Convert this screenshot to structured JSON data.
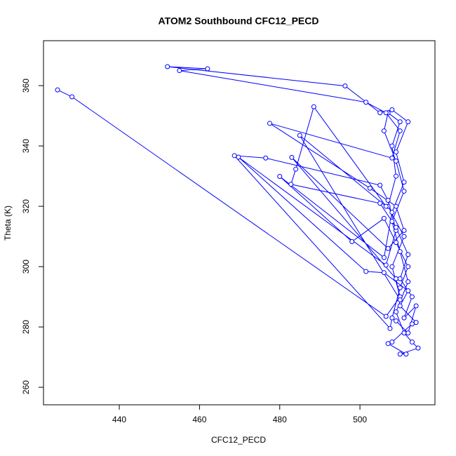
{
  "chart_data": {
    "type": "line",
    "title": "ATOM2 Southbound CFC12_PECD",
    "x_label": "CFC12_PECD",
    "y_label": "Theta (K)",
    "marker": "open-circle",
    "xlim": [
      421.1,
      518.7
    ],
    "ylim": [
      254.2,
      374.9
    ],
    "xticks": [
      440,
      460,
      480,
      500
    ],
    "yticks": [
      260,
      280,
      300,
      320,
      340,
      360
    ],
    "x": [
      424.6,
      428.2,
      506.5,
      510,
      508,
      511,
      507,
      509,
      508,
      510,
      507,
      506,
      509,
      511,
      508,
      510,
      512,
      509,
      511,
      513,
      514.5,
      510,
      511.5,
      507,
      508,
      513,
      514,
      510,
      512,
      506,
      501.5,
      469.7,
      506.5,
      509,
      507,
      505,
      476.5,
      468.7,
      507.5,
      508,
      510,
      512,
      509,
      506,
      498,
      480,
      506,
      508,
      511,
      509,
      512,
      508,
      505,
      496.3,
      452,
      462,
      455,
      501.5,
      506.5,
      510,
      508,
      477.5,
      502.5,
      509,
      511,
      507,
      483,
      509,
      510,
      485,
      506.5,
      488.5,
      484,
      482.8,
      505,
      509,
      512,
      510,
      513,
      511,
      514,
      512,
      509
    ],
    "series": [
      {
        "color": "#0000ff",
        "values": [
          358.6,
          356.3,
          283.5,
          290,
          300,
          310,
          320,
          330,
          340,
          348,
          351,
          345,
          335,
          325,
          315,
          305,
          295,
          285,
          278,
          275,
          273,
          271,
          271,
          274.5,
          275,
          281,
          281.5,
          287,
          292,
          298,
          298.4,
          336.3,
          300.5,
          312,
          322,
          327,
          336,
          336.8,
          279.5,
          283,
          293,
          300,
          308,
          316,
          308.3,
          329.9,
          303,
          318,
          328,
          338,
          348,
          352,
          351,
          359.9,
          366.3,
          365.6,
          365,
          354.5,
          351,
          345,
          336,
          347.5,
          326,
          320,
          312,
          306,
          336.2,
          296,
          289,
          343.5,
          320,
          353,
          332.3,
          327.3,
          321,
          313,
          304,
          296,
          290,
          283,
          287,
          278,
          282
        ]
      }
    ]
  }
}
